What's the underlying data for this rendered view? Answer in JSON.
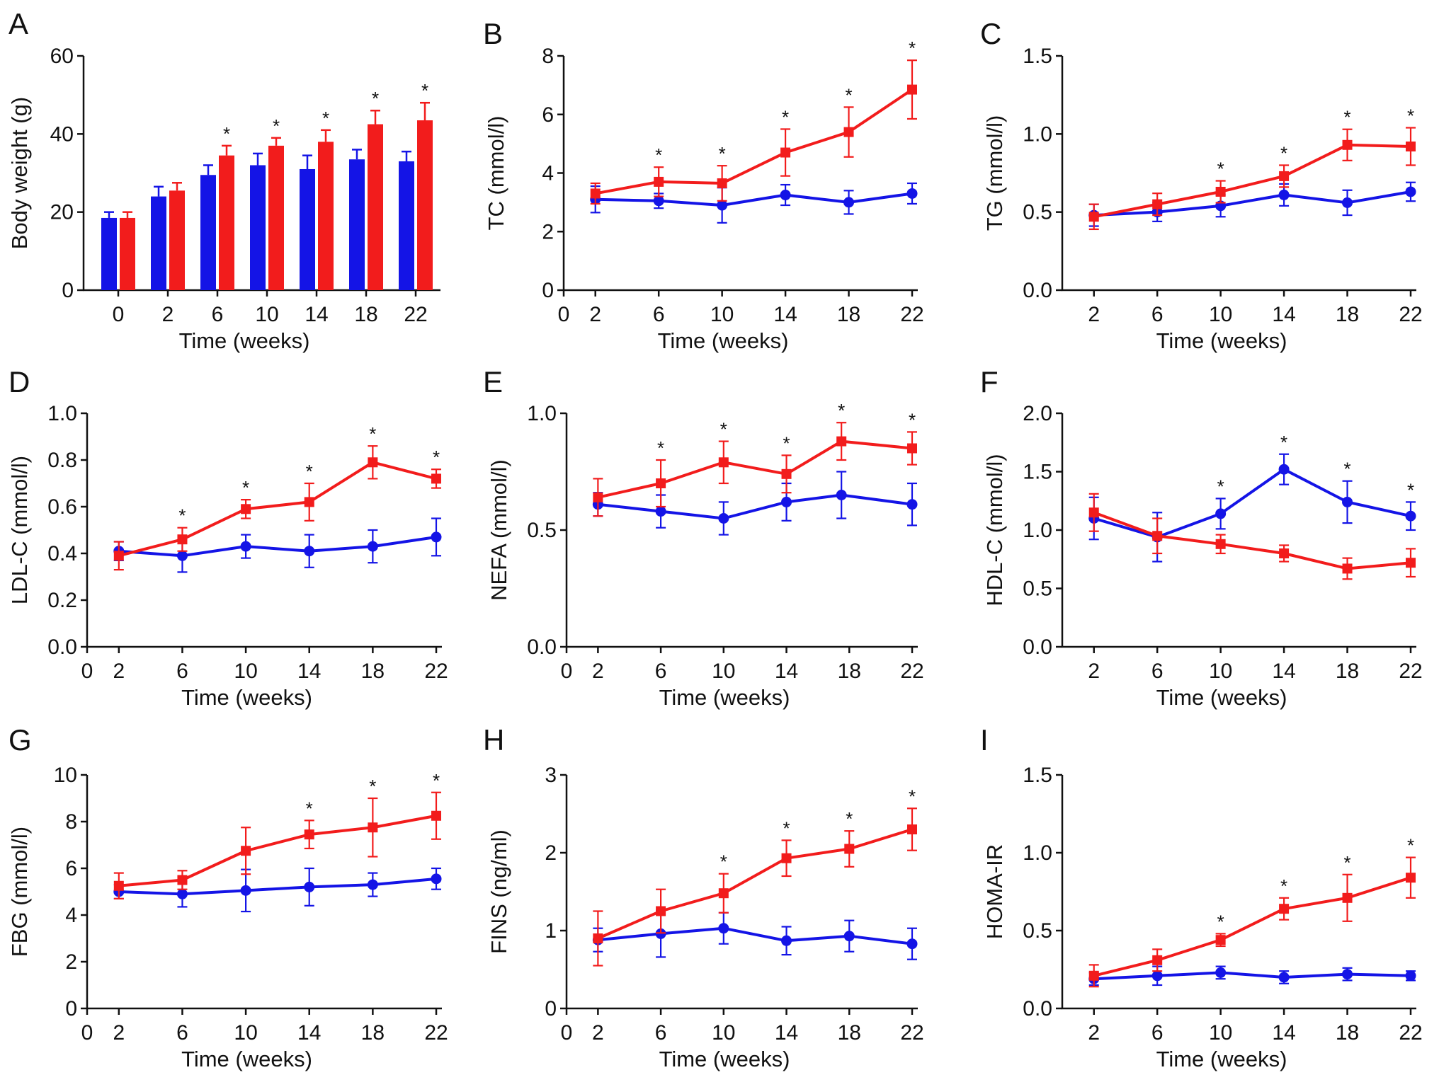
{
  "colors": {
    "series_a": "#1414e6",
    "series_b": "#f21c1c"
  },
  "chart_data": [
    {
      "panel": "A",
      "type": "bar",
      "xlabel": "Time (weeks)",
      "ylabel": "Body weight (g)",
      "ylim": [
        0,
        60
      ],
      "yticks": [
        "0",
        "20",
        "40",
        "60"
      ],
      "categories": [
        "0",
        "2",
        "6",
        "10",
        "14",
        "18",
        "22"
      ],
      "series": [
        {
          "color": "series_a",
          "values": [
            18.5,
            24.0,
            29.5,
            32.0,
            31.0,
            33.5,
            33.0
          ],
          "errors": [
            1.5,
            2.5,
            2.5,
            3.0,
            3.5,
            2.5,
            2.5
          ]
        },
        {
          "color": "series_b",
          "values": [
            18.5,
            25.5,
            34.5,
            37.0,
            38.0,
            42.5,
            43.5
          ],
          "errors": [
            1.5,
            2.0,
            2.5,
            2.0,
            3.0,
            3.5,
            4.5
          ]
        }
      ],
      "significance": [
        "",
        "",
        "*",
        "*",
        "*",
        "*",
        "*"
      ]
    },
    {
      "panel": "B",
      "type": "line",
      "xlabel": "Time (weeks)",
      "ylabel": "TC (mmol/l)",
      "xlim": [
        0,
        22
      ],
      "xticks": [
        0,
        2,
        6,
        10,
        14,
        18,
        22
      ],
      "ylim": [
        0,
        8
      ],
      "yticks": [
        "0",
        "2",
        "4",
        "6",
        "8"
      ],
      "x": [
        2,
        6,
        10,
        14,
        18,
        22
      ],
      "series": [
        {
          "color": "series_a",
          "marker": "circle",
          "values": [
            3.1,
            3.05,
            2.9,
            3.25,
            3.0,
            3.3
          ],
          "errors": [
            0.45,
            0.25,
            0.6,
            0.35,
            0.4,
            0.35
          ]
        },
        {
          "color": "series_b",
          "marker": "square",
          "values": [
            3.3,
            3.7,
            3.65,
            4.7,
            5.4,
            6.85
          ],
          "errors": [
            0.35,
            0.5,
            0.6,
            0.8,
            0.85,
            1.0
          ]
        }
      ],
      "significance": [
        "",
        "*",
        "*",
        "*",
        "*",
        "*"
      ]
    },
    {
      "panel": "C",
      "type": "line",
      "xlabel": "Time (weeks)",
      "ylabel": "TG (mmol/l)",
      "xlim": [
        0,
        22
      ],
      "xticks": [
        2,
        6,
        10,
        14,
        18,
        22
      ],
      "ylim": [
        0,
        1.5
      ],
      "yticks": [
        "0.0",
        "0.5",
        "1.0",
        "1.5"
      ],
      "x": [
        2,
        6,
        10,
        14,
        18,
        22
      ],
      "series": [
        {
          "color": "series_a",
          "marker": "circle",
          "values": [
            0.48,
            0.5,
            0.54,
            0.61,
            0.56,
            0.63
          ],
          "errors": [
            0.07,
            0.06,
            0.07,
            0.07,
            0.08,
            0.06
          ]
        },
        {
          "color": "series_b",
          "marker": "square",
          "values": [
            0.47,
            0.55,
            0.63,
            0.73,
            0.93,
            0.92
          ],
          "errors": [
            0.08,
            0.07,
            0.07,
            0.07,
            0.1,
            0.12
          ]
        }
      ],
      "significance": [
        "",
        "",
        "*",
        "*",
        "*",
        "*"
      ]
    },
    {
      "panel": "D",
      "type": "line",
      "xlabel": "Time (weeks)",
      "ylabel": "LDL-C (mmol/l)",
      "xlim": [
        0,
        22
      ],
      "xticks": [
        0,
        2,
        6,
        10,
        14,
        18,
        22
      ],
      "ylim": [
        0,
        1.0
      ],
      "yticks": [
        "0.0",
        "0.2",
        "0.4",
        "0.6",
        "0.8",
        "1.0"
      ],
      "x": [
        2,
        6,
        10,
        14,
        18,
        22
      ],
      "series": [
        {
          "color": "series_a",
          "marker": "circle",
          "values": [
            0.41,
            0.39,
            0.43,
            0.41,
            0.43,
            0.47
          ],
          "errors": [
            0.04,
            0.07,
            0.05,
            0.07,
            0.07,
            0.08
          ]
        },
        {
          "color": "series_b",
          "marker": "square",
          "values": [
            0.39,
            0.46,
            0.59,
            0.62,
            0.79,
            0.72
          ],
          "errors": [
            0.06,
            0.05,
            0.04,
            0.08,
            0.07,
            0.04
          ]
        }
      ],
      "significance": [
        "",
        "*",
        "*",
        "*",
        "*",
        "*"
      ]
    },
    {
      "panel": "E",
      "type": "line",
      "xlabel": "Time (weeks)",
      "ylabel": "NEFA (mmol/l)",
      "xlim": [
        0,
        22
      ],
      "xticks": [
        0,
        2,
        6,
        10,
        14,
        18,
        22
      ],
      "ylim": [
        0,
        1.0
      ],
      "yticks": [
        "0.0",
        "0.5",
        "1.0"
      ],
      "x": [
        2,
        6,
        10,
        14,
        17.5,
        22
      ],
      "series": [
        {
          "color": "series_a",
          "marker": "circle",
          "values": [
            0.61,
            0.58,
            0.55,
            0.62,
            0.65,
            0.61
          ],
          "errors": [
            0.05,
            0.07,
            0.07,
            0.08,
            0.1,
            0.09
          ]
        },
        {
          "color": "series_b",
          "marker": "square",
          "values": [
            0.64,
            0.7,
            0.79,
            0.74,
            0.88,
            0.85
          ],
          "errors": [
            0.08,
            0.1,
            0.09,
            0.08,
            0.08,
            0.07
          ]
        }
      ],
      "significance": [
        "",
        "*",
        "*",
        "*",
        "*",
        "*"
      ]
    },
    {
      "panel": "F",
      "type": "line",
      "xlabel": "Time (weeks)",
      "ylabel": "HDL-C (mmol/l)",
      "xlim": [
        0,
        22
      ],
      "xticks": [
        2,
        6,
        10,
        14,
        18,
        22
      ],
      "ylim": [
        0,
        2.0
      ],
      "yticks": [
        "0.0",
        "0.5",
        "1.0",
        "1.5",
        "2.0"
      ],
      "x": [
        2,
        6,
        10,
        14,
        18,
        22
      ],
      "series": [
        {
          "color": "series_a",
          "marker": "circle",
          "values": [
            1.1,
            0.94,
            1.14,
            1.52,
            1.24,
            1.12
          ],
          "errors": [
            0.18,
            0.21,
            0.13,
            0.13,
            0.18,
            0.12
          ]
        },
        {
          "color": "series_b",
          "marker": "square",
          "values": [
            1.15,
            0.95,
            0.88,
            0.8,
            0.67,
            0.72
          ],
          "errors": [
            0.16,
            0.15,
            0.08,
            0.07,
            0.09,
            0.12
          ]
        }
      ],
      "significance": [
        "",
        "",
        "*",
        "*",
        "*",
        "*"
      ]
    },
    {
      "panel": "G",
      "type": "line",
      "xlabel": "Time (weeks)",
      "ylabel": "FBG (mmol/l)",
      "xlim": [
        0,
        22
      ],
      "xticks": [
        0,
        2,
        6,
        10,
        14,
        18,
        22
      ],
      "ylim": [
        0,
        10
      ],
      "yticks": [
        "0",
        "2",
        "4",
        "6",
        "8",
        "10"
      ],
      "x": [
        2,
        6,
        10,
        14,
        18,
        22
      ],
      "series": [
        {
          "color": "series_a",
          "marker": "circle",
          "values": [
            5.0,
            4.9,
            5.05,
            5.2,
            5.3,
            5.55
          ],
          "errors": [
            0.3,
            0.55,
            0.9,
            0.8,
            0.5,
            0.45
          ]
        },
        {
          "color": "series_b",
          "marker": "square",
          "values": [
            5.25,
            5.5,
            6.75,
            7.45,
            7.75,
            8.25
          ],
          "errors": [
            0.55,
            0.4,
            1.0,
            0.6,
            1.25,
            1.0
          ]
        }
      ],
      "significance": [
        "",
        "",
        "",
        "*",
        "*",
        "*"
      ]
    },
    {
      "panel": "H",
      "type": "line",
      "xlabel": "Time (weeks)",
      "ylabel": "FINS (ng/ml)",
      "xlim": [
        0,
        22
      ],
      "xticks": [
        0,
        2,
        6,
        10,
        14,
        18,
        22
      ],
      "ylim": [
        0,
        3
      ],
      "yticks": [
        "0",
        "1",
        "2",
        "3"
      ],
      "x": [
        2,
        6,
        10,
        14,
        18,
        22
      ],
      "series": [
        {
          "color": "series_a",
          "marker": "circle",
          "values": [
            0.88,
            0.96,
            1.03,
            0.87,
            0.93,
            0.83
          ],
          "errors": [
            0.15,
            0.3,
            0.2,
            0.18,
            0.2,
            0.2
          ]
        },
        {
          "color": "series_b",
          "marker": "square",
          "values": [
            0.9,
            1.25,
            1.48,
            1.93,
            2.05,
            2.3
          ],
          "errors": [
            0.35,
            0.28,
            0.25,
            0.23,
            0.23,
            0.27
          ]
        }
      ],
      "significance": [
        "",
        "",
        "*",
        "*",
        "*",
        "*"
      ]
    },
    {
      "panel": "I",
      "type": "line",
      "xlabel": "Time (weeks)",
      "ylabel": "HOMA-IR",
      "xlim": [
        0,
        22
      ],
      "xticks": [
        2,
        6,
        10,
        14,
        18,
        22
      ],
      "ylim": [
        0,
        1.5
      ],
      "yticks": [
        "0.0",
        "0.5",
        "1.0",
        "1.5"
      ],
      "x": [
        2,
        6,
        10,
        14,
        18,
        22
      ],
      "series": [
        {
          "color": "series_a",
          "marker": "circle",
          "values": [
            0.19,
            0.21,
            0.23,
            0.2,
            0.22,
            0.21
          ],
          "errors": [
            0.04,
            0.06,
            0.04,
            0.04,
            0.04,
            0.03
          ]
        },
        {
          "color": "series_b",
          "marker": "square",
          "values": [
            0.21,
            0.31,
            0.44,
            0.64,
            0.71,
            0.84
          ],
          "errors": [
            0.07,
            0.07,
            0.04,
            0.07,
            0.15,
            0.13
          ]
        }
      ],
      "significance": [
        "",
        "",
        "*",
        "*",
        "*",
        "*"
      ]
    }
  ]
}
